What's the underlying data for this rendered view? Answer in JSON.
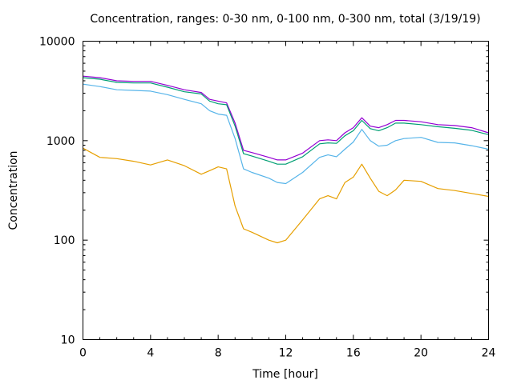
{
  "chart_data": {
    "type": "line",
    "title": "Concentration, ranges: 0-30 nm, 0-100 nm, 0-300 nm, total (3/19/19)",
    "xlabel": "Time [hour]",
    "ylabel": "Concentration",
    "xlim": [
      0,
      24
    ],
    "ylim": [
      10,
      10000
    ],
    "yscale": "log",
    "grid": false,
    "legend": "none",
    "x_ticks": [
      0,
      4,
      8,
      12,
      16,
      20,
      24
    ],
    "x_tick_labels": [
      "0",
      "4",
      "8",
      "12",
      "16",
      "20",
      "24"
    ],
    "y_ticks": [
      10,
      100,
      1000,
      10000
    ],
    "y_tick_labels": [
      "10",
      "100",
      "1000",
      "10000"
    ],
    "x": [
      0,
      1,
      2,
      3,
      4,
      5,
      6,
      7,
      7.5,
      8,
      8.5,
      9,
      9.5,
      10,
      11,
      11.5,
      12,
      13,
      14,
      14.5,
      15,
      15.5,
      16,
      16.5,
      17,
      17.5,
      18,
      18.5,
      19,
      20,
      21,
      22,
      23,
      24
    ],
    "series": [
      {
        "name": "total",
        "color": "#9400d3",
        "values": [
          4450,
          4300,
          4000,
          3950,
          3950,
          3600,
          3250,
          3050,
          2600,
          2500,
          2400,
          1500,
          800,
          760,
          680,
          640,
          640,
          750,
          1000,
          1020,
          1000,
          1200,
          1350,
          1700,
          1400,
          1350,
          1450,
          1600,
          1600,
          1550,
          1450,
          1420,
          1350,
          1200
        ]
      },
      {
        "name": "0-300 nm",
        "color": "#009e73",
        "values": [
          4300,
          4150,
          3850,
          3800,
          3800,
          3450,
          3100,
          2950,
          2500,
          2350,
          2300,
          1400,
          740,
          700,
          620,
          580,
          580,
          690,
          930,
          950,
          940,
          1120,
          1260,
          1600,
          1320,
          1260,
          1350,
          1500,
          1500,
          1450,
          1380,
          1330,
          1270,
          1150
        ]
      },
      {
        "name": "0-100 nm",
        "color": "#56b4e9",
        "values": [
          3700,
          3500,
          3250,
          3200,
          3150,
          2900,
          2600,
          2350,
          2000,
          1850,
          1800,
          1050,
          520,
          480,
          420,
          380,
          370,
          480,
          680,
          720,
          690,
          820,
          970,
          1300,
          1000,
          880,
          900,
          1000,
          1050,
          1080,
          960,
          950,
          890,
          820
        ]
      },
      {
        "name": "0-30 nm",
        "color": "#e69f00",
        "values": [
          840,
          680,
          660,
          620,
          570,
          640,
          560,
          460,
          500,
          545,
          520,
          220,
          130,
          120,
          100,
          94,
          100,
          160,
          260,
          280,
          260,
          380,
          430,
          580,
          420,
          310,
          280,
          320,
          400,
          390,
          330,
          315,
          295,
          275
        ]
      }
    ]
  }
}
